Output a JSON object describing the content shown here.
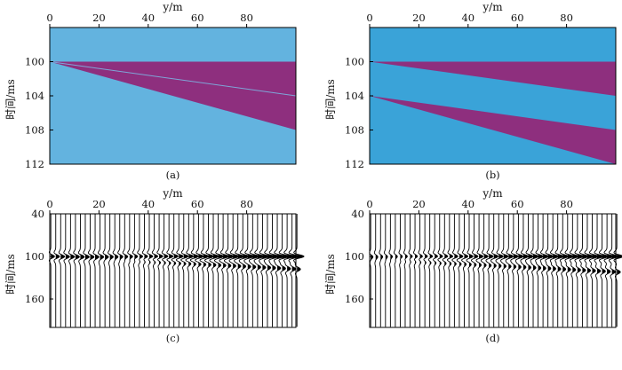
{
  "figure": {
    "panel_a_caption": "(a)",
    "panel_b_caption": "(b)",
    "panel_c_caption": "(c)",
    "panel_d_caption": "(d)",
    "background_color": "#63b3df",
    "background_color_b": "#3aa3d8",
    "wedge_color": "#8e2f7e",
    "trace_color": "#000000"
  },
  "chart_data": [
    {
      "id": "a",
      "type": "area",
      "title": "",
      "xlabel": "y/m",
      "ylabel": "时间/ms",
      "xlim": [
        0,
        100
      ],
      "ylim": [
        112,
        96
      ],
      "xticks": [
        "0",
        "20",
        "40",
        "60",
        "80"
      ],
      "yticks": [
        "100",
        "104",
        "108",
        "112"
      ],
      "layers": [
        {
          "name": "wedge",
          "top": [
            [
              0,
              100
            ],
            [
              100,
              100
            ]
          ],
          "bottom": [
            [
              0,
              100
            ],
            [
              100,
              108
            ]
          ]
        }
      ],
      "line": [
        [
          0,
          100
        ],
        [
          100,
          104
        ]
      ]
    },
    {
      "id": "b",
      "type": "area",
      "title": "",
      "xlabel": "y/m",
      "ylabel": "时间/ms",
      "xlim": [
        0,
        100
      ],
      "ylim": [
        112,
        96
      ],
      "xticks": [
        "0",
        "20",
        "40",
        "60",
        "80"
      ],
      "yticks": [
        "100",
        "104",
        "108",
        "112"
      ],
      "layers": [
        {
          "name": "upper wedge",
          "top": [
            [
              0,
              100
            ],
            [
              100,
              100
            ]
          ],
          "bottom": [
            [
              0,
              100
            ],
            [
              100,
              104
            ]
          ]
        },
        {
          "name": "lower wedge",
          "top": [
            [
              0,
              104
            ],
            [
              100,
              108
            ]
          ],
          "bottom": [
            [
              0,
              104
            ],
            [
              100,
              112
            ]
          ]
        }
      ]
    },
    {
      "id": "c",
      "type": "line",
      "title": "",
      "xlabel": "y/m",
      "ylabel": "时间/ms",
      "xlim": [
        0,
        100
      ],
      "ylim": [
        200,
        40
      ],
      "xticks": [
        "0",
        "20",
        "40",
        "60",
        "80"
      ],
      "yticks": [
        "40",
        "100",
        "160"
      ],
      "trace_count": 51,
      "trace_spacing_m": 2,
      "events": [
        {
          "t0": 100,
          "dt_per_m": 0.0,
          "amp_max": 2.6
        },
        {
          "t0": 100,
          "dt_per_m": 0.18,
          "amp_max": 1.3
        }
      ]
    },
    {
      "id": "d",
      "type": "line",
      "title": "",
      "xlabel": "y/m",
      "ylabel": "时间/ms",
      "xlim": [
        0,
        100
      ],
      "ylim": [
        200,
        40
      ],
      "xticks": [
        "0",
        "20",
        "40",
        "60",
        "80"
      ],
      "yticks": [
        "40",
        "100",
        "160"
      ],
      "trace_count": 51,
      "trace_spacing_m": 2,
      "events": [
        {
          "t0": 100,
          "dt_per_m": 0.0,
          "amp_max": 2.4
        },
        {
          "t0": 104,
          "dt_per_m": 0.18,
          "amp_max": 1.3
        }
      ]
    }
  ]
}
